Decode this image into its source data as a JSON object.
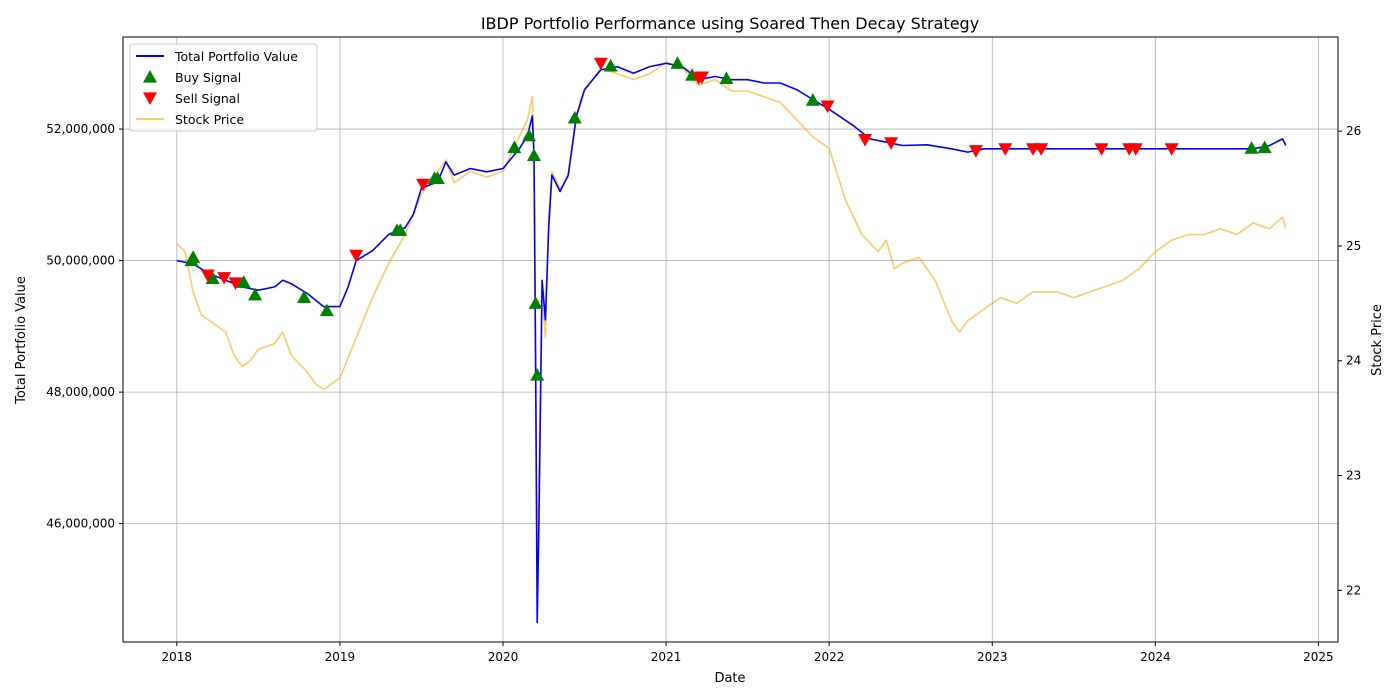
{
  "chart_data": {
    "type": "line",
    "title": "IBDP Portfolio Performance using Soared Then Decay Strategy",
    "xlabel": "Date",
    "ylabel": "Total Portfolio Value",
    "ylabel_right": "Stock Price",
    "xlim": [
      2017.67,
      2025.12
    ],
    "ylim": [
      44200000,
      53400000
    ],
    "ylim_right": [
      21.55,
      26.82
    ],
    "x_ticks": [
      2018,
      2019,
      2020,
      2021,
      2022,
      2023,
      2024,
      2025
    ],
    "x_tick_labels": [
      "2018",
      "2019",
      "2020",
      "2021",
      "2022",
      "2023",
      "2024",
      "2025"
    ],
    "y_ticks": [
      46000000,
      48000000,
      50000000,
      52000000
    ],
    "y_tick_labels": [
      "46,000,000",
      "48,000,000",
      "50,000,000",
      "52,000,000"
    ],
    "y_ticks_right": [
      22,
      23,
      24,
      25,
      26
    ],
    "y_tick_labels_right": [
      "22",
      "23",
      "24",
      "25",
      "26"
    ],
    "grid": true,
    "legend_position": "top-left",
    "colors": {
      "portfolio": "#0000ff",
      "stock": "#ffa500",
      "buy": "#008000",
      "sell": "#ff0000"
    },
    "series": [
      {
        "name": "Total Portfolio Value",
        "axis": "left",
        "points": [
          [
            2018.0,
            50000000
          ],
          [
            2018.1,
            49950000
          ],
          [
            2018.2,
            49800000
          ],
          [
            2018.3,
            49700000
          ],
          [
            2018.4,
            49600000
          ],
          [
            2018.5,
            49550000
          ],
          [
            2018.6,
            49600000
          ],
          [
            2018.65,
            49700000
          ],
          [
            2018.7,
            49650000
          ],
          [
            2018.8,
            49500000
          ],
          [
            2018.85,
            49400000
          ],
          [
            2018.9,
            49300000
          ],
          [
            2019.0,
            49300000
          ],
          [
            2019.05,
            49600000
          ],
          [
            2019.1,
            50000000
          ],
          [
            2019.2,
            50150000
          ],
          [
            2019.3,
            50400000
          ],
          [
            2019.4,
            50500000
          ],
          [
            2019.45,
            50700000
          ],
          [
            2019.5,
            51100000
          ],
          [
            2019.6,
            51200000
          ],
          [
            2019.65,
            51500000
          ],
          [
            2019.7,
            51300000
          ],
          [
            2019.8,
            51400000
          ],
          [
            2019.9,
            51350000
          ],
          [
            2020.0,
            51400000
          ],
          [
            2020.1,
            51700000
          ],
          [
            2020.15,
            51900000
          ],
          [
            2020.18,
            52200000
          ],
          [
            2020.19,
            51600000
          ],
          [
            2020.2,
            48500000
          ],
          [
            2020.21,
            44500000
          ],
          [
            2020.22,
            46000000
          ],
          [
            2020.24,
            49700000
          ],
          [
            2020.26,
            49100000
          ],
          [
            2020.28,
            50500000
          ],
          [
            2020.3,
            51300000
          ],
          [
            2020.35,
            51050000
          ],
          [
            2020.4,
            51300000
          ],
          [
            2020.45,
            52200000
          ],
          [
            2020.5,
            52600000
          ],
          [
            2020.6,
            52900000
          ],
          [
            2020.7,
            52950000
          ],
          [
            2020.8,
            52850000
          ],
          [
            2020.9,
            52950000
          ],
          [
            2021.0,
            53000000
          ],
          [
            2021.1,
            52950000
          ],
          [
            2021.2,
            52750000
          ],
          [
            2021.3,
            52800000
          ],
          [
            2021.4,
            52750000
          ],
          [
            2021.5,
            52750000
          ],
          [
            2021.6,
            52700000
          ],
          [
            2021.7,
            52700000
          ],
          [
            2021.8,
            52600000
          ],
          [
            2021.9,
            52450000
          ],
          [
            2022.0,
            52300000
          ],
          [
            2022.15,
            52050000
          ],
          [
            2022.25,
            51850000
          ],
          [
            2022.35,
            51800000
          ],
          [
            2022.45,
            51750000
          ],
          [
            2022.6,
            51760000
          ],
          [
            2022.75,
            51700000
          ],
          [
            2022.85,
            51650000
          ],
          [
            2022.95,
            51700000
          ],
          [
            2023.2,
            51700000
          ],
          [
            2023.6,
            51700000
          ],
          [
            2024.0,
            51700000
          ],
          [
            2024.4,
            51700000
          ],
          [
            2024.6,
            51700000
          ],
          [
            2024.7,
            51750000
          ],
          [
            2024.78,
            51850000
          ],
          [
            2024.8,
            51750000
          ]
        ]
      },
      {
        "name": "Stock Price",
        "axis": "right",
        "points": [
          [
            2018.0,
            25.02
          ],
          [
            2018.05,
            24.95
          ],
          [
            2018.1,
            24.6
          ],
          [
            2018.15,
            24.4
          ],
          [
            2018.2,
            24.35
          ],
          [
            2018.3,
            24.25
          ],
          [
            2018.35,
            24.05
          ],
          [
            2018.4,
            23.95
          ],
          [
            2018.45,
            24.0
          ],
          [
            2018.5,
            24.1
          ],
          [
            2018.6,
            24.15
          ],
          [
            2018.65,
            24.25
          ],
          [
            2018.7,
            24.05
          ],
          [
            2018.8,
            23.9
          ],
          [
            2018.85,
            23.8
          ],
          [
            2018.9,
            23.75
          ],
          [
            2019.0,
            23.85
          ],
          [
            2019.1,
            24.2
          ],
          [
            2019.2,
            24.55
          ],
          [
            2019.3,
            24.85
          ],
          [
            2019.4,
            25.1
          ],
          [
            2019.5,
            25.45
          ],
          [
            2019.6,
            25.65
          ],
          [
            2019.65,
            25.75
          ],
          [
            2019.7,
            25.55
          ],
          [
            2019.8,
            25.65
          ],
          [
            2019.9,
            25.6
          ],
          [
            2020.0,
            25.65
          ],
          [
            2020.1,
            25.95
          ],
          [
            2020.15,
            26.1
          ],
          [
            2020.18,
            26.3
          ],
          [
            2020.19,
            25.8
          ],
          [
            2020.2,
            23.8
          ],
          [
            2020.21,
            22.05
          ],
          [
            2020.22,
            23.0
          ],
          [
            2020.24,
            24.6
          ],
          [
            2020.26,
            24.2
          ],
          [
            2020.28,
            25.25
          ],
          [
            2020.3,
            25.65
          ],
          [
            2020.35,
            25.5
          ],
          [
            2020.4,
            25.6
          ],
          [
            2020.45,
            26.1
          ],
          [
            2020.5,
            26.35
          ],
          [
            2020.6,
            26.55
          ],
          [
            2020.7,
            26.5
          ],
          [
            2020.8,
            26.45
          ],
          [
            2020.9,
            26.5
          ],
          [
            2021.0,
            26.6
          ],
          [
            2021.1,
            26.55
          ],
          [
            2021.2,
            26.4
          ],
          [
            2021.3,
            26.45
          ],
          [
            2021.4,
            26.35
          ],
          [
            2021.5,
            26.35
          ],
          [
            2021.6,
            26.3
          ],
          [
            2021.7,
            26.25
          ],
          [
            2021.8,
            26.1
          ],
          [
            2021.9,
            25.95
          ],
          [
            2022.0,
            25.85
          ],
          [
            2022.1,
            25.4
          ],
          [
            2022.2,
            25.1
          ],
          [
            2022.3,
            24.95
          ],
          [
            2022.35,
            25.05
          ],
          [
            2022.4,
            24.8
          ],
          [
            2022.45,
            24.85
          ],
          [
            2022.55,
            24.9
          ],
          [
            2022.65,
            24.7
          ],
          [
            2022.75,
            24.35
          ],
          [
            2022.8,
            24.25
          ],
          [
            2022.85,
            24.35
          ],
          [
            2022.95,
            24.45
          ],
          [
            2023.05,
            24.55
          ],
          [
            2023.15,
            24.5
          ],
          [
            2023.25,
            24.6
          ],
          [
            2023.4,
            24.6
          ],
          [
            2023.5,
            24.55
          ],
          [
            2023.6,
            24.6
          ],
          [
            2023.7,
            24.65
          ],
          [
            2023.8,
            24.7
          ],
          [
            2023.9,
            24.8
          ],
          [
            2024.0,
            24.95
          ],
          [
            2024.1,
            25.05
          ],
          [
            2024.2,
            25.1
          ],
          [
            2024.3,
            25.1
          ],
          [
            2024.4,
            25.15
          ],
          [
            2024.5,
            25.1
          ],
          [
            2024.6,
            25.2
          ],
          [
            2024.7,
            25.15
          ],
          [
            2024.78,
            25.25
          ],
          [
            2024.8,
            25.15
          ]
        ]
      }
    ],
    "buy_signals": [
      [
        2018.09,
        50000000
      ],
      [
        2018.1,
        50050000
      ],
      [
        2018.22,
        49730000
      ],
      [
        2018.41,
        49670000
      ],
      [
        2018.48,
        49480000
      ],
      [
        2018.78,
        49440000
      ],
      [
        2018.92,
        49240000
      ],
      [
        2019.35,
        50460000
      ],
      [
        2019.37,
        50460000
      ],
      [
        2019.58,
        51250000
      ],
      [
        2019.6,
        51250000
      ],
      [
        2020.07,
        51720000
      ],
      [
        2020.16,
        51900000
      ],
      [
        2020.19,
        51600000
      ],
      [
        2020.2,
        49350000
      ],
      [
        2020.21,
        48260000
      ],
      [
        2020.44,
        52170000
      ],
      [
        2020.66,
        52960000
      ],
      [
        2021.07,
        53000000
      ],
      [
        2021.16,
        52820000
      ],
      [
        2021.37,
        52770000
      ],
      [
        2021.9,
        52440000
      ],
      [
        2024.59,
        51710000
      ],
      [
        2024.67,
        51720000
      ]
    ],
    "sell_signals": [
      [
        2018.19,
        49780000
      ],
      [
        2018.29,
        49740000
      ],
      [
        2018.36,
        49660000
      ],
      [
        2019.1,
        50080000
      ],
      [
        2019.51,
        51160000
      ],
      [
        2020.6,
        53000000
      ],
      [
        2021.2,
        52780000
      ],
      [
        2021.22,
        52790000
      ],
      [
        2021.99,
        52350000
      ],
      [
        2022.22,
        51840000
      ],
      [
        2022.38,
        51790000
      ],
      [
        2022.9,
        51670000
      ],
      [
        2023.08,
        51700000
      ],
      [
        2023.25,
        51700000
      ],
      [
        2023.3,
        51700000
      ],
      [
        2023.67,
        51700000
      ],
      [
        2023.84,
        51700000
      ],
      [
        2023.88,
        51700000
      ],
      [
        2024.1,
        51700000
      ]
    ],
    "legend": [
      {
        "label": "Total Portfolio Value",
        "kind": "line",
        "color": "#0000ff"
      },
      {
        "label": "Buy Signal",
        "kind": "up-triangle",
        "color": "#008000"
      },
      {
        "label": "Sell Signal",
        "kind": "down-triangle",
        "color": "#ff0000"
      },
      {
        "label": "Stock Price",
        "kind": "line",
        "color": "#ffa500"
      }
    ]
  }
}
